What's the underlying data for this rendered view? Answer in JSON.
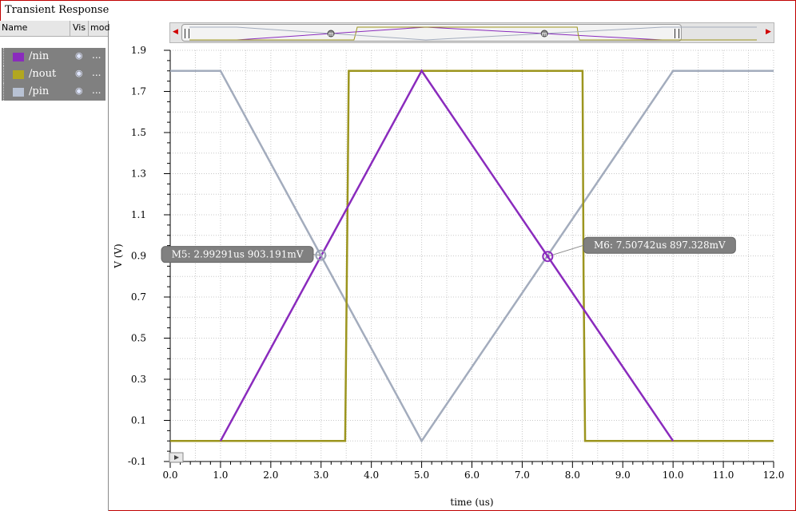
{
  "window": {
    "title": "Transient Response"
  },
  "panel": {
    "headers": [
      "Name",
      "Vis",
      "mod"
    ],
    "signals": [
      {
        "name": "/nin",
        "color": "#8a2bbd",
        "more": "..."
      },
      {
        "name": "/nout",
        "color": "#b2a720",
        "more": "..."
      },
      {
        "name": "/pin",
        "color": "#b8c2d4",
        "more": "..."
      }
    ]
  },
  "colors": {
    "nin": "#8a2bbd",
    "nout": "#9c951e",
    "pin": "#a3acbd",
    "grid": "#c8c8c8"
  },
  "chart_data": {
    "type": "line",
    "title": "",
    "xlabel": "time (us)",
    "ylabel": "V (V)",
    "xlim": [
      0.0,
      12.0
    ],
    "ylim": [
      -0.1,
      1.9
    ],
    "x_ticks": [
      "0.0",
      "1.0",
      "2.0",
      "3.0",
      "4.0",
      "5.0",
      "6.0",
      "7.0",
      "8.0",
      "9.0",
      "10.0",
      "11.0",
      "12.0"
    ],
    "y_ticks": [
      "-0.1",
      "0.1",
      "0.3",
      "0.5",
      "0.7",
      "0.9",
      "1.1",
      "1.3",
      "1.5",
      "1.7",
      "1.9"
    ],
    "grid": true,
    "series": [
      {
        "name": "/nin",
        "x": [
          1.0,
          5.0,
          10.0
        ],
        "y": [
          0.0,
          1.8,
          0.0
        ]
      },
      {
        "name": "/nout",
        "x": [
          0.0,
          3.48,
          3.52,
          3.55,
          8.2,
          8.22,
          8.25,
          12.0
        ],
        "y": [
          0.0,
          0.0,
          1.0,
          1.8,
          1.8,
          0.8,
          0.0,
          0.0
        ]
      },
      {
        "name": "/pin",
        "x": [
          0.0,
          1.0,
          5.0,
          10.0,
          12.0
        ],
        "y": [
          1.8,
          1.8,
          0.0,
          1.8,
          1.8
        ]
      }
    ],
    "markers": [
      {
        "label": "M5: 2.99291us 903.191mV",
        "x": 2.99291,
        "y": 0.903191,
        "series": "/pin",
        "side": "left"
      },
      {
        "label": "M6: 7.50742us 897.328mV",
        "x": 7.50742,
        "y": 0.897328,
        "series": "/nin",
        "side": "right"
      }
    ]
  },
  "overview": {
    "marker_glyph": "m"
  }
}
